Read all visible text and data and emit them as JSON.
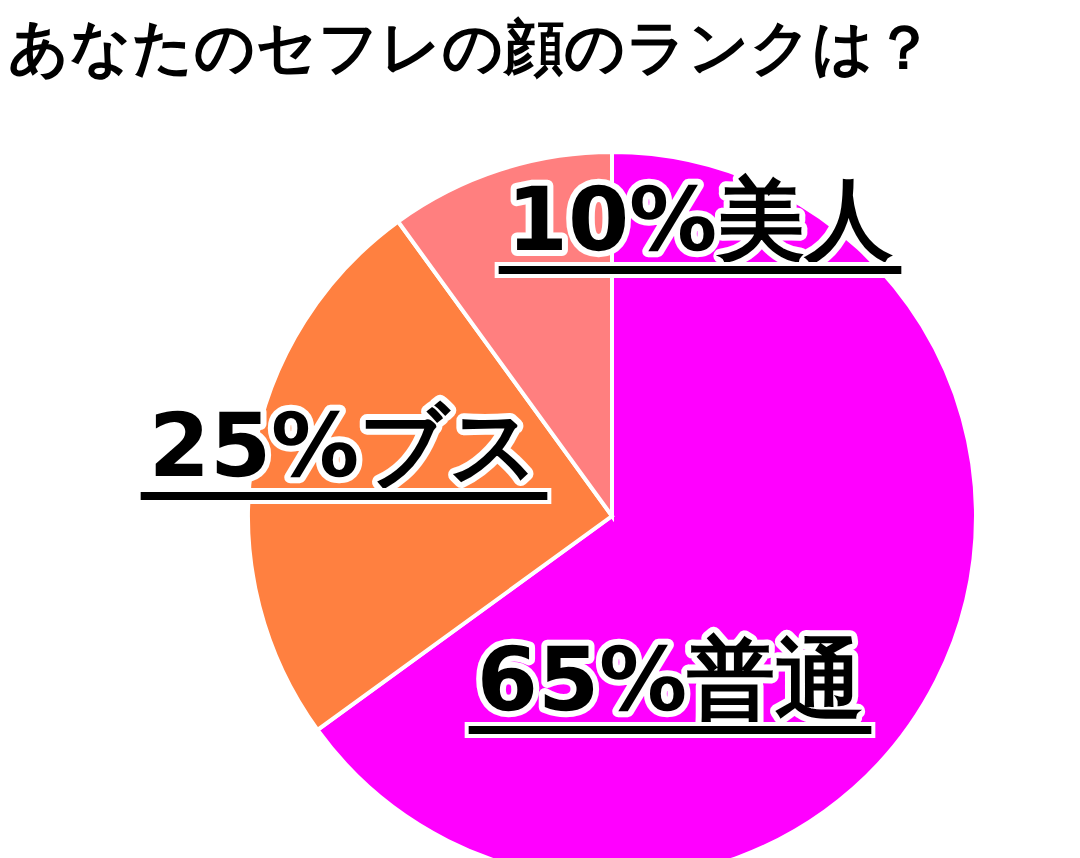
{
  "chart_data": {
    "type": "pie",
    "title": "あなたのセフレの顔のランクは？",
    "categories": [
      "普通",
      "ブス",
      "美人"
    ],
    "values": [
      65,
      25,
      10
    ],
    "value_labels": [
      "65%",
      "25%",
      "10%"
    ],
    "colors": [
      "#ff00ff",
      "#ff8040",
      "#ff7f7f"
    ]
  }
}
